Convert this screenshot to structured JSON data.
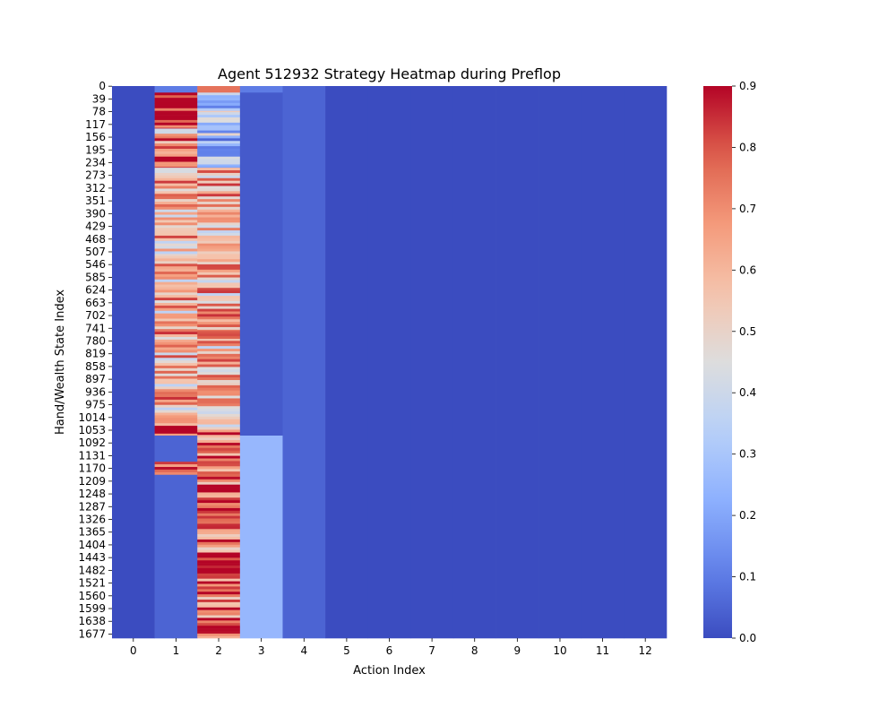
{
  "chart_data": {
    "type": "heatmap",
    "title": "Agent 512932 Strategy Heatmap during Preflop",
    "xlabel": "Action Index",
    "ylabel": "Hand/Wealth State Index",
    "x_tick_labels": [
      "0",
      "1",
      "2",
      "3",
      "4",
      "5",
      "6",
      "7",
      "8",
      "9",
      "10",
      "11",
      "12"
    ],
    "y_tick_labels": [
      "0",
      "39",
      "78",
      "117",
      "156",
      "195",
      "234",
      "273",
      "312",
      "351",
      "390",
      "429",
      "468",
      "507",
      "546",
      "585",
      "624",
      "663",
      "702",
      "741",
      "780",
      "819",
      "858",
      "897",
      "936",
      "975",
      "1014",
      "1053",
      "1092",
      "1131",
      "1170",
      "1209",
      "1248",
      "1287",
      "1326",
      "1365",
      "1404",
      "1443",
      "1482",
      "1521",
      "1560",
      "1599",
      "1638",
      "1677"
    ],
    "n_rows": 1690,
    "n_cols": 13,
    "colorbar": {
      "min": 0.0,
      "max": 0.9,
      "ticks": [
        "0.0",
        "0.1",
        "0.2",
        "0.3",
        "0.4",
        "0.5",
        "0.6",
        "0.7",
        "0.8",
        "0.9"
      ],
      "colormap": "coolwarm"
    },
    "column_summaries": [
      {
        "col": 0,
        "segments": [
          {
            "rows": [
              0,
              1690
            ],
            "value": 0.0
          }
        ]
      },
      {
        "col": 1,
        "segments": [
          {
            "rows": [
              0,
              20
            ],
            "value": 0.1
          },
          {
            "rows": [
              20,
              80
            ],
            "value": 0.88
          },
          {
            "rows": [
              80,
              130
            ],
            "value": 0.85
          },
          {
            "rows": [
              130,
              160
            ],
            "value": 0.55
          },
          {
            "rows": [
              160,
              250
            ],
            "value": 0.72
          },
          {
            "rows": [
              250,
              520
            ],
            "value": 0.6
          },
          {
            "rows": [
              520,
              560
            ],
            "value": 0.65
          },
          {
            "rows": [
              560,
              1040
            ],
            "value": 0.6
          },
          {
            "rows": [
              1040,
              1070
            ],
            "value": 0.85
          },
          {
            "rows": [
              1070,
              1150
            ],
            "value": 0.05
          },
          {
            "rows": [
              1150,
              1190
            ],
            "value": 0.8
          },
          {
            "rows": [
              1190,
              1690
            ],
            "value": 0.05
          }
        ]
      },
      {
        "col": 2,
        "segments": [
          {
            "rows": [
              0,
              20
            ],
            "value": 0.75
          },
          {
            "rows": [
              20,
              80
            ],
            "value": 0.3
          },
          {
            "rows": [
              80,
              160
            ],
            "value": 0.3
          },
          {
            "rows": [
              160,
              250
            ],
            "value": 0.3
          },
          {
            "rows": [
              250,
              750
            ],
            "value": 0.6
          },
          {
            "rows": [
              750,
              780
            ],
            "value": 0.75
          },
          {
            "rows": [
              780,
              1060
            ],
            "value": 0.6
          },
          {
            "rows": [
              1060,
              1690
            ],
            "value": 0.75
          }
        ]
      },
      {
        "col": 3,
        "segments": [
          {
            "rows": [
              0,
              20
            ],
            "value": 0.1
          },
          {
            "rows": [
              20,
              1070
            ],
            "value": 0.03
          },
          {
            "rows": [
              1070,
              1690
            ],
            "value": 0.25
          }
        ]
      },
      {
        "col": 4,
        "segments": [
          {
            "rows": [
              0,
              1690
            ],
            "value": 0.05
          }
        ]
      },
      {
        "col": 5,
        "segments": [
          {
            "rows": [
              0,
              1690
            ],
            "value": 0.0
          }
        ]
      },
      {
        "col": 6,
        "segments": [
          {
            "rows": [
              0,
              1690
            ],
            "value": 0.0
          }
        ]
      },
      {
        "col": 7,
        "segments": [
          {
            "rows": [
              0,
              1690
            ],
            "value": 0.0
          }
        ]
      },
      {
        "col": 8,
        "segments": [
          {
            "rows": [
              0,
              1690
            ],
            "value": 0.0
          }
        ]
      },
      {
        "col": 9,
        "segments": [
          {
            "rows": [
              0,
              1690
            ],
            "value": 0.0
          }
        ]
      },
      {
        "col": 10,
        "segments": [
          {
            "rows": [
              0,
              1690
            ],
            "value": 0.0
          }
        ]
      },
      {
        "col": 11,
        "segments": [
          {
            "rows": [
              0,
              1690
            ],
            "value": 0.0
          }
        ]
      },
      {
        "col": 12,
        "segments": [
          {
            "rows": [
              0,
              1690
            ],
            "value": 0.0
          }
        ]
      }
    ],
    "grid": false,
    "legend": "colorbar-right"
  }
}
